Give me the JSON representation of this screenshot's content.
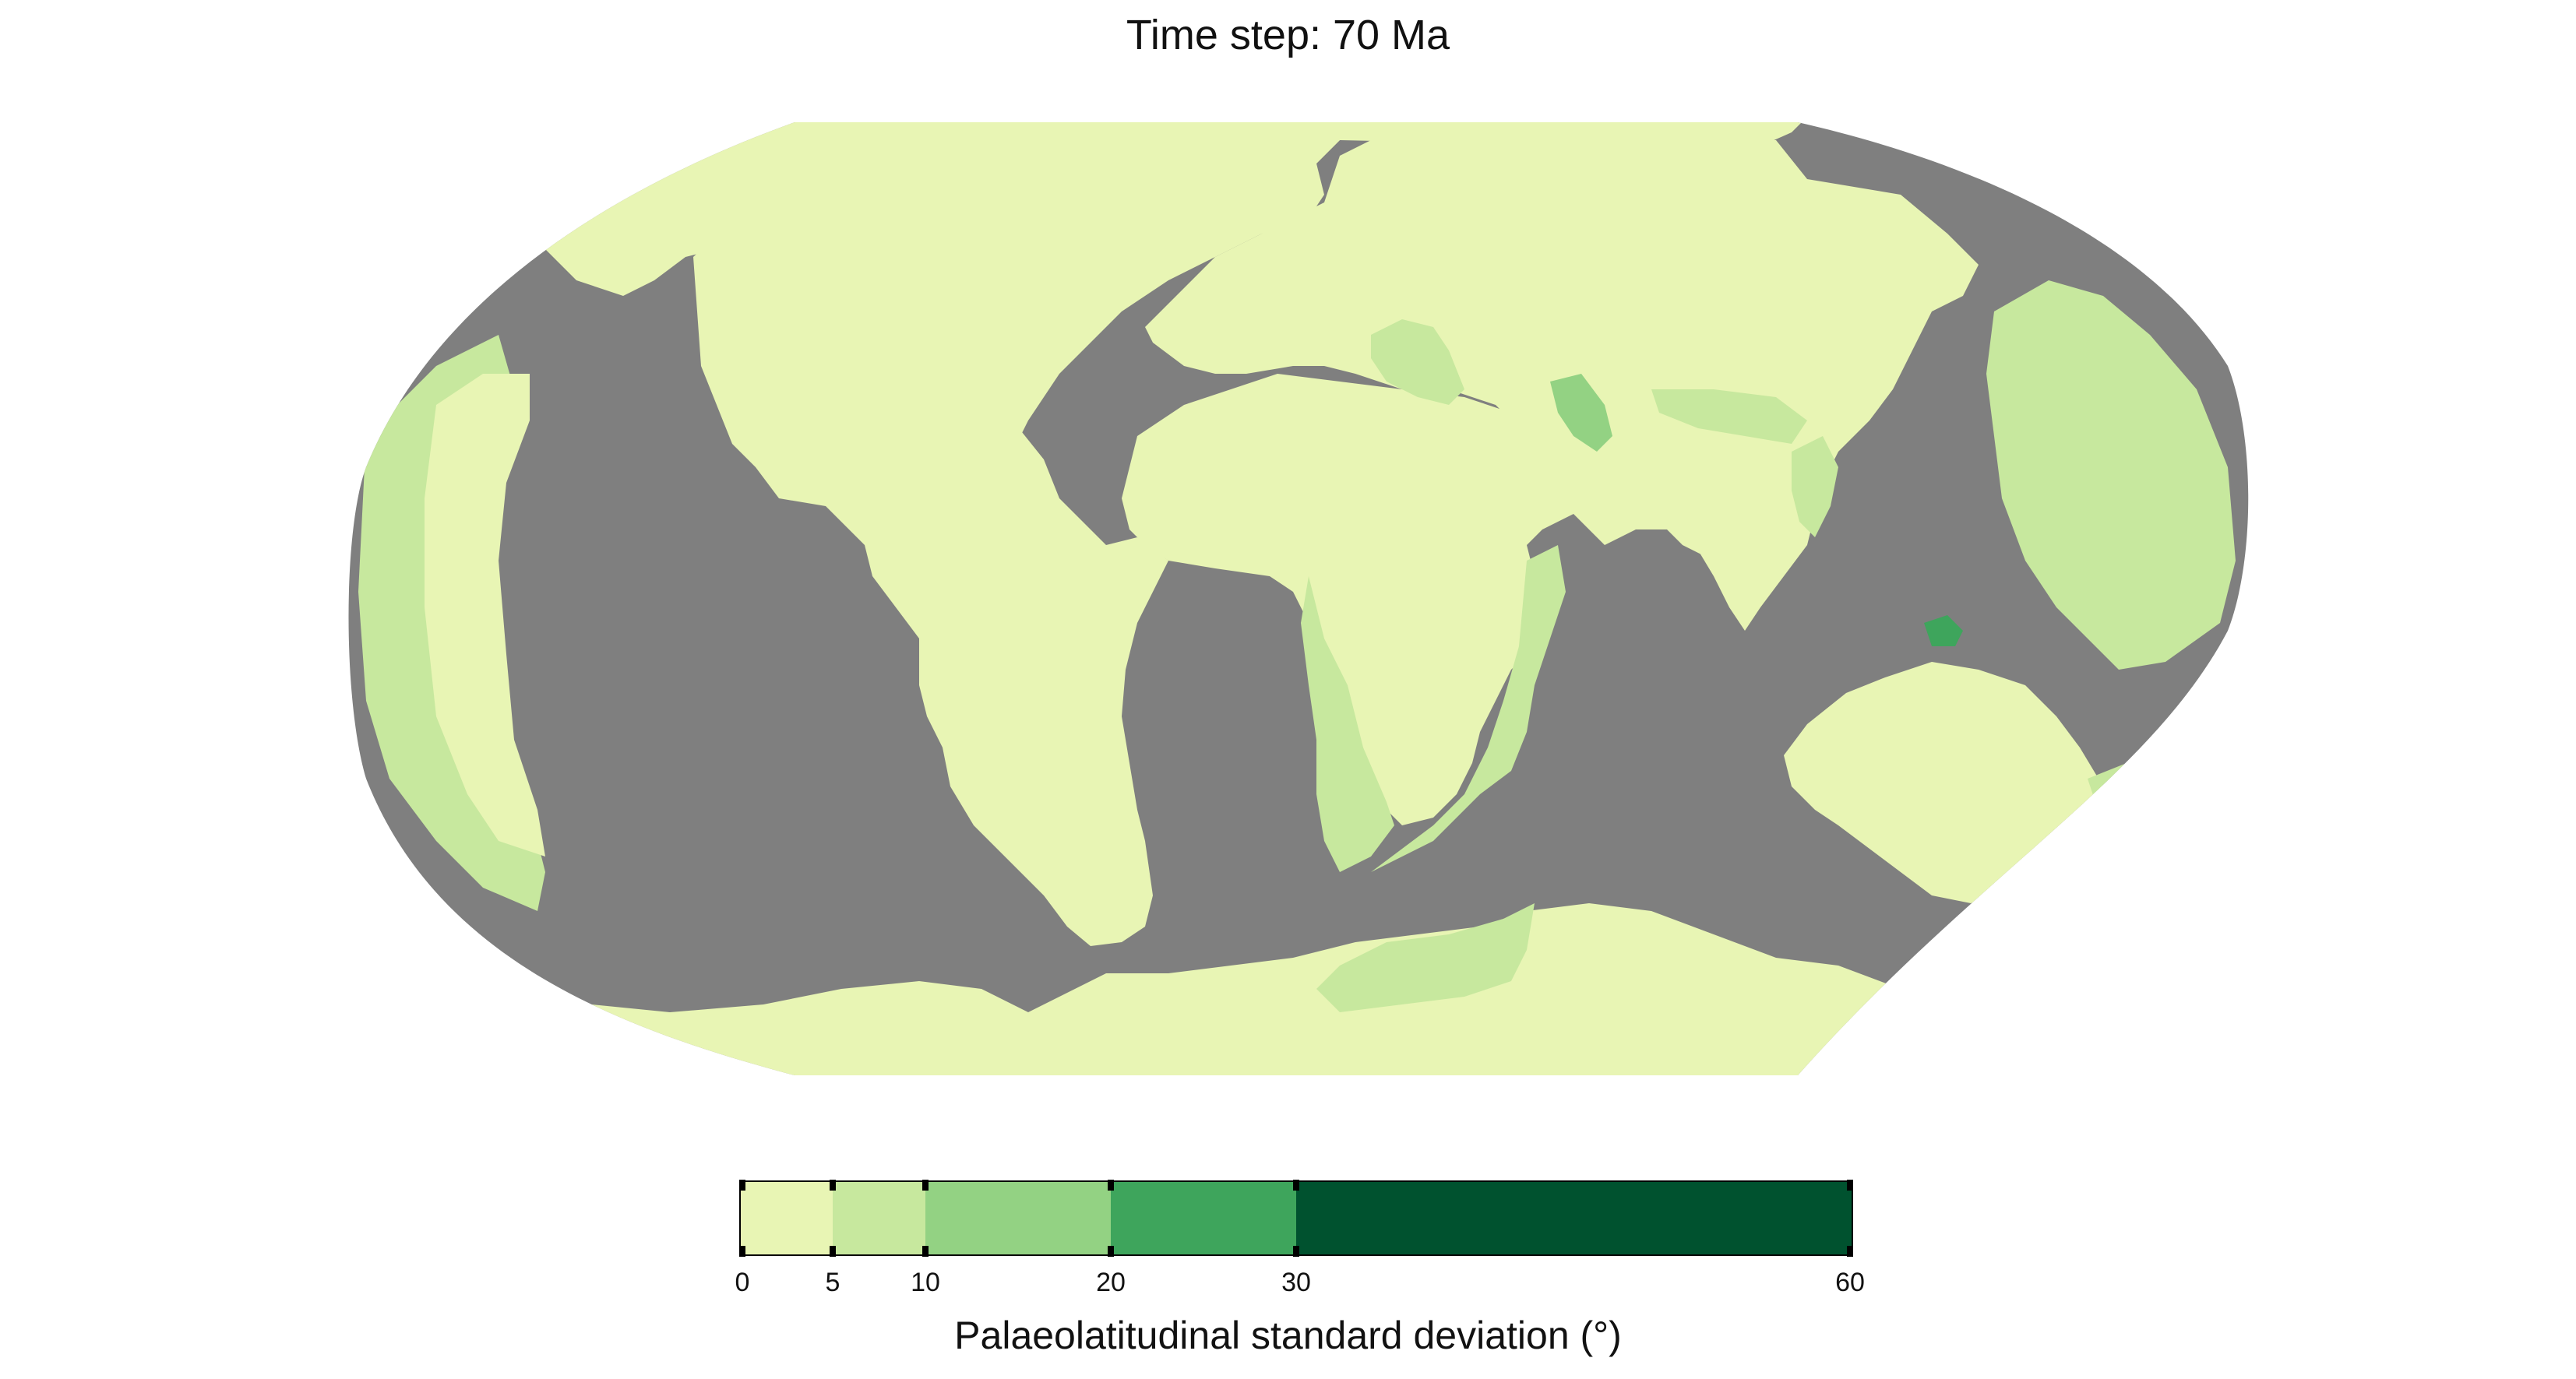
{
  "title": "Time step: 70 Ma",
  "colorbar": {
    "label": "Palaeolatitudinal standard deviation (°)",
    "ticks": [
      "0",
      "5",
      "10",
      "20",
      "30",
      "60"
    ],
    "bins": [
      {
        "from": 0,
        "to": 5,
        "color": "#e8f5b4"
      },
      {
        "from": 5,
        "to": 10,
        "color": "#c7e89e"
      },
      {
        "from": 10,
        "to": 20,
        "color": "#93d283"
      },
      {
        "from": 20,
        "to": 30,
        "color": "#3ea55c"
      },
      {
        "from": 30,
        "to": 60,
        "color": "#00522f"
      }
    ]
  },
  "map": {
    "projection": "Robinson",
    "ocean_color": "#7f7f7f",
    "land_base_color": "#e8f5b4"
  }
}
